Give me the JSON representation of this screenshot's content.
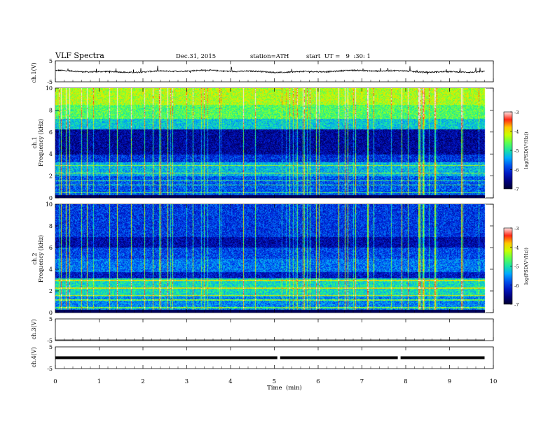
{
  "header": {
    "title": "VLF Spectra",
    "date": "Dec.31, 2015",
    "station": "station=ATH",
    "start": "start  UT =   9  :30: 1"
  },
  "colorbar": {
    "label": "log(PSD(V²/Hz))",
    "ticks": [
      "-3",
      "-4",
      "-5",
      "-6",
      "-7"
    ],
    "colors": [
      "#ffffff",
      "#ff2020",
      "#ffd000",
      "#30ff50",
      "#00a0ff",
      "#0010d0",
      "#000060"
    ]
  },
  "chart_data": [
    {
      "type": "line",
      "panel": "ch.1 waveform",
      "ylabel": "ch.1(V)",
      "yticks": [
        "5",
        "-5"
      ],
      "ylim": [
        -5,
        5
      ],
      "xlim": [
        0,
        10
      ],
      "baseline": 0
    },
    {
      "type": "heatmap",
      "panel": "ch.1 spectrogram",
      "ylabel": "ch.1\nFrequency  (kHz)",
      "yticks": [
        "0",
        "2",
        "4",
        "6",
        "8",
        "10"
      ],
      "ylim": [
        0,
        10
      ],
      "xlim": [
        0,
        10
      ],
      "data_end_min": 9.8,
      "zlim": [
        -7,
        -3
      ]
    },
    {
      "type": "heatmap",
      "panel": "ch.2 spectrogram",
      "ylabel": "ch.2\nFrequency  (kHz)",
      "yticks": [
        "0",
        "2",
        "4",
        "6",
        "8",
        "10"
      ],
      "ylim": [
        0,
        10
      ],
      "xlim": [
        0,
        10
      ],
      "data_end_min": 9.8,
      "zlim": [
        -7,
        -3
      ]
    },
    {
      "type": "line",
      "panel": "ch.3 waveform",
      "ylabel": "ch.3(V)",
      "yticks": [
        "5",
        "-5"
      ],
      "ylim": [
        -5,
        5
      ],
      "xlim": [
        0,
        10
      ],
      "baseline": -5
    },
    {
      "type": "line",
      "panel": "ch.4 waveform",
      "ylabel": "ch.4(V)",
      "yticks": [
        "5",
        "-5"
      ],
      "ylim": [
        -5,
        5
      ],
      "xlim": [
        0,
        10
      ],
      "baseline": 0,
      "gaps_min": [
        5.1,
        7.85
      ]
    }
  ],
  "xaxis": {
    "label": "Time  (min)",
    "ticks": [
      "0",
      "1",
      "2",
      "3",
      "4",
      "5",
      "6",
      "7",
      "8",
      "9",
      "10"
    ]
  }
}
